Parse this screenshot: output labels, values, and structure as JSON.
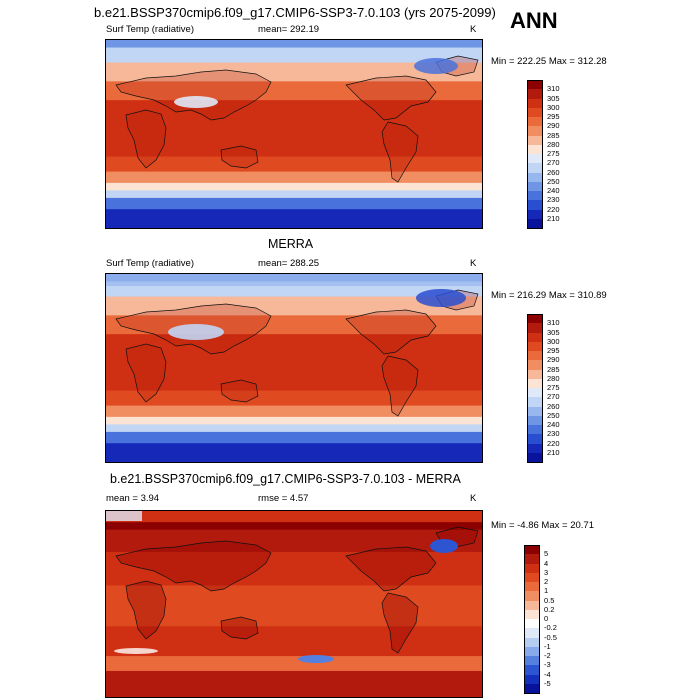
{
  "header": {
    "title": "b.e21.BSSP370cmip6.f09_g17.CMIP6-SSP3-7.0.103 (yrs 2075-2099)",
    "season": "ANN"
  },
  "panels": [
    {
      "id": "model",
      "title": "",
      "variable": "Surf Temp (radiative)",
      "stat_text": "mean= 292.19",
      "units": "K",
      "minmax": "Min = 222.25 Max = 312.28",
      "levels": [
        "310",
        "305",
        "300",
        "295",
        "290",
        "285",
        "280",
        "275",
        "270",
        "260",
        "250",
        "240",
        "230",
        "220",
        "210"
      ],
      "colors": [
        "#8b0000",
        "#b21a0d",
        "#cf2f12",
        "#e04a20",
        "#ea6a3b",
        "#f08e62",
        "#f6b898",
        "#fbe4d3",
        "#dfe9f8",
        "#c1d5f4",
        "#97b7ee",
        "#6f96e5",
        "#4a72dc",
        "#2a4ed0",
        "#1528b8",
        "#08129a"
      ]
    },
    {
      "id": "obs",
      "title": "MERRA",
      "variable": "Surf Temp (radiative)",
      "stat_text": "mean= 288.25",
      "units": "K",
      "minmax": "Min = 216.29 Max = 310.89",
      "levels": [
        "310",
        "305",
        "300",
        "295",
        "290",
        "285",
        "280",
        "275",
        "270",
        "260",
        "250",
        "240",
        "230",
        "220",
        "210"
      ],
      "colors": [
        "#8b0000",
        "#b21a0d",
        "#cf2f12",
        "#e04a20",
        "#ea6a3b",
        "#f08e62",
        "#f6b898",
        "#fbe4d3",
        "#dfe9f8",
        "#c1d5f4",
        "#97b7ee",
        "#6f96e5",
        "#4a72dc",
        "#2a4ed0",
        "#1528b8",
        "#08129a"
      ]
    },
    {
      "id": "diff",
      "title": "b.e21.BSSP370cmip6.f09_g17.CMIP6-SSP3-7.0.103 - MERRA",
      "variable": "",
      "stat_text": "mean =   3.94",
      "stat_text2": "rmse =   4.57",
      "units": "K",
      "minmax": "Min = -4.86 Max =  20.71",
      "levels": [
        "5",
        "4",
        "3",
        "2",
        "1",
        "0.5",
        "0.2",
        "0",
        "-0.2",
        "-0.5",
        "-1",
        "-2",
        "-3",
        "-4",
        "-5"
      ],
      "colors": [
        "#8b0000",
        "#b21a0d",
        "#cf2f12",
        "#e04a20",
        "#ea6a3b",
        "#f08e62",
        "#f6b898",
        "#fbe4d3",
        "#ffffff",
        "#dfe9f8",
        "#b6cdf2",
        "#86aaeb",
        "#5580e0",
        "#2d55d2",
        "#1530bc",
        "#08129a"
      ]
    }
  ]
}
